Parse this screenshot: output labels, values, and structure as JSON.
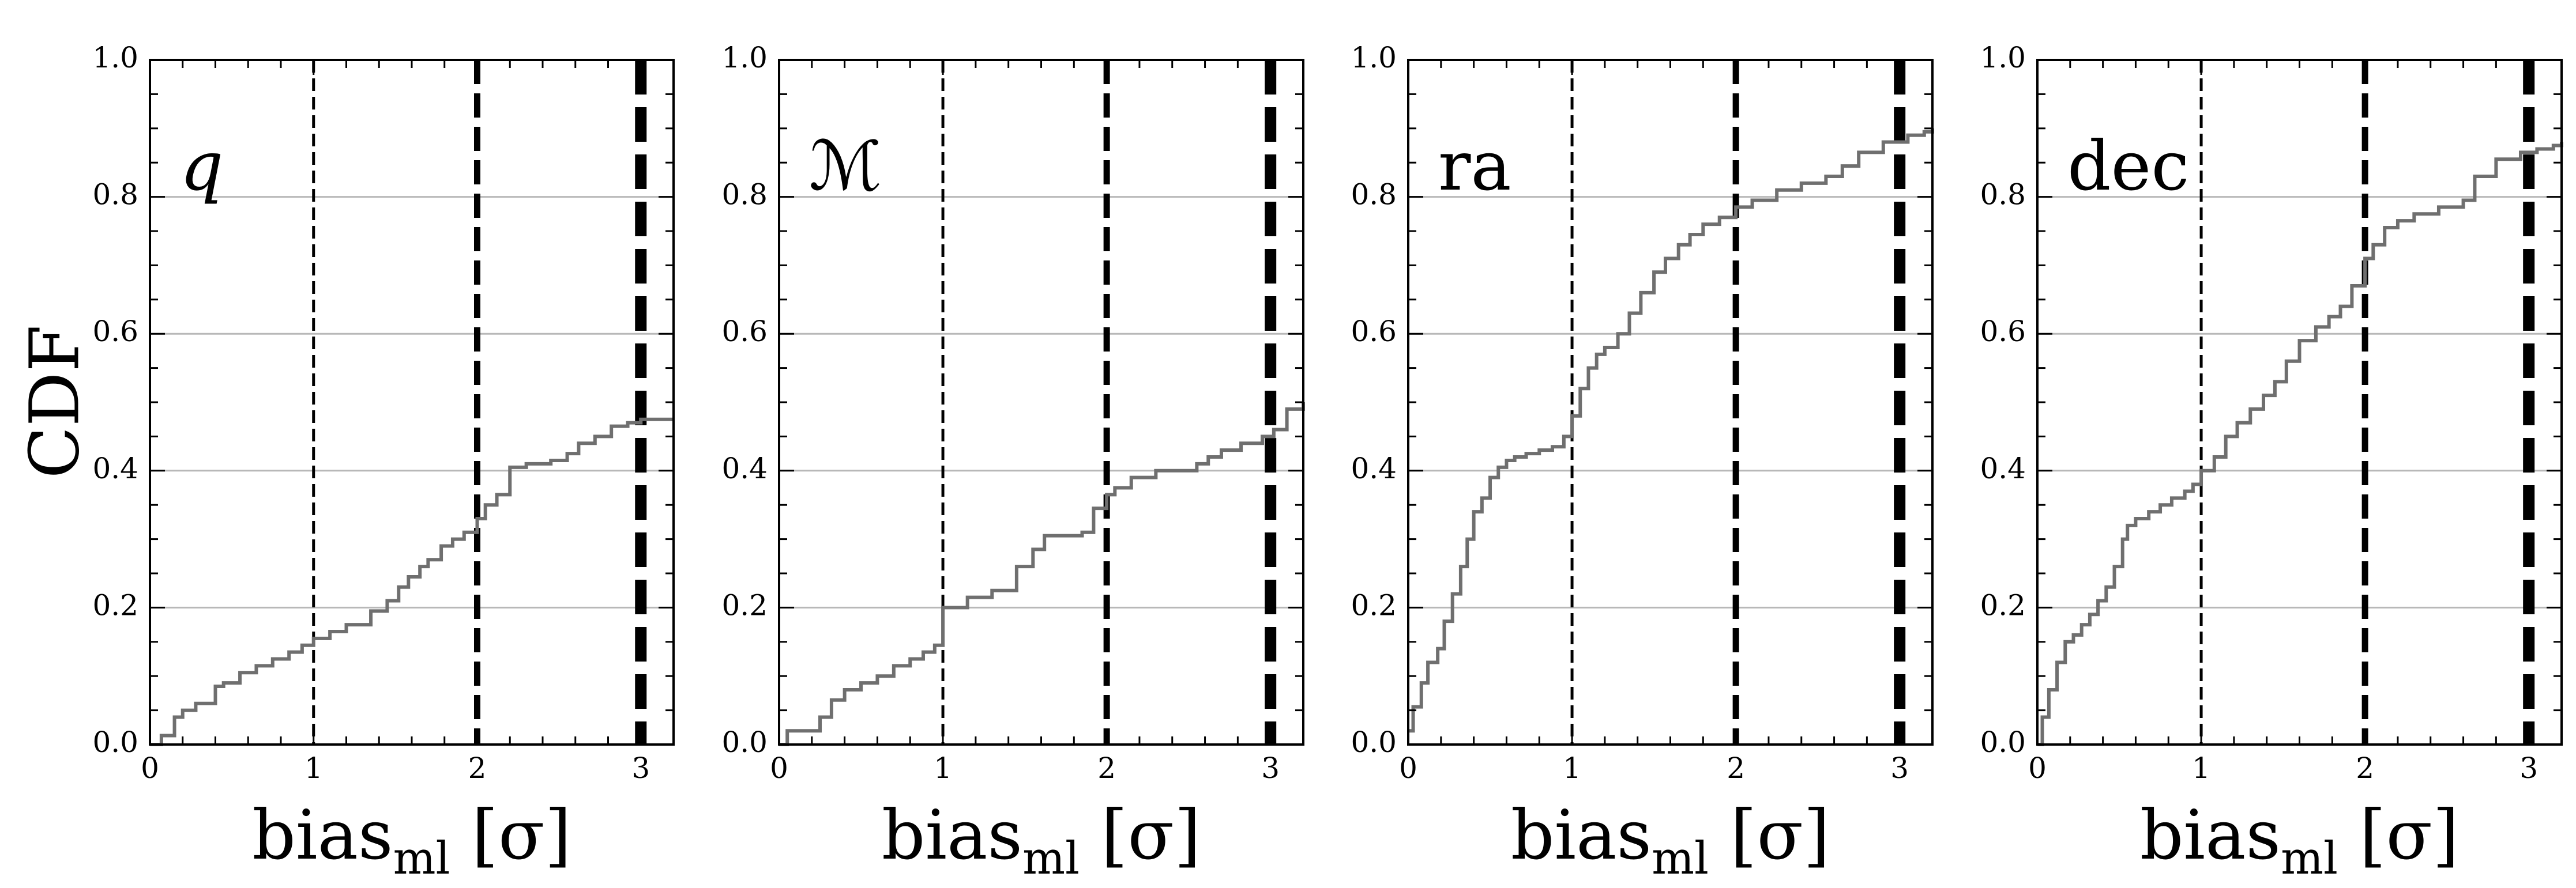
{
  "figure": {
    "ylabel": "CDF"
  },
  "chart_data": [
    {
      "type": "line",
      "step": true,
      "panel_label": "q",
      "panel_label_italic": true,
      "xlabel_main": "bias",
      "xlabel_sub": "ml",
      "xlabel_unit": "[σ]",
      "xlim": [
        0,
        3.2
      ],
      "ylim": [
        0,
        1.0
      ],
      "x_ticks": [
        "0",
        "1",
        "2",
        "3"
      ],
      "y_ticks": [
        "0.0",
        "0.2",
        "0.4",
        "0.6",
        "0.8",
        "1.0"
      ],
      "grid": "horizontal",
      "reference_lines": [
        {
          "x": 1,
          "style": "dashed",
          "weight": "thin"
        },
        {
          "x": 2,
          "style": "dashed",
          "weight": "medium"
        },
        {
          "x": 3,
          "style": "dashed",
          "weight": "thick"
        }
      ],
      "series": [
        {
          "color": "#6f6f6f",
          "x": [
            0.0,
            0.07,
            0.15,
            0.2,
            0.28,
            0.4,
            0.45,
            0.55,
            0.65,
            0.75,
            0.85,
            0.93,
            1.0,
            1.1,
            1.2,
            1.35,
            1.45,
            1.52,
            1.58,
            1.65,
            1.7,
            1.78,
            1.85,
            1.92,
            2.0,
            2.05,
            2.12,
            2.2,
            2.3,
            2.45,
            2.55,
            2.62,
            2.72,
            2.82,
            2.92,
            3.0,
            3.2
          ],
          "y": [
            0.0,
            0.013,
            0.04,
            0.05,
            0.06,
            0.085,
            0.09,
            0.105,
            0.115,
            0.125,
            0.135,
            0.145,
            0.155,
            0.165,
            0.175,
            0.195,
            0.21,
            0.23,
            0.245,
            0.26,
            0.27,
            0.29,
            0.3,
            0.31,
            0.33,
            0.35,
            0.365,
            0.405,
            0.41,
            0.415,
            0.425,
            0.44,
            0.45,
            0.465,
            0.47,
            0.475,
            0.475
          ]
        }
      ]
    },
    {
      "type": "line",
      "step": true,
      "panel_label": "ℳ",
      "panel_label_italic": false,
      "xlabel_main": "bias",
      "xlabel_sub": "ml",
      "xlabel_unit": "[σ]",
      "xlim": [
        0,
        3.2
      ],
      "ylim": [
        0,
        1.0
      ],
      "x_ticks": [
        "0",
        "1",
        "2",
        "3"
      ],
      "y_ticks": [
        "0.0",
        "0.2",
        "0.4",
        "0.6",
        "0.8",
        "1.0"
      ],
      "grid": "horizontal",
      "reference_lines": [
        {
          "x": 1,
          "style": "dashed",
          "weight": "thin"
        },
        {
          "x": 2,
          "style": "dashed",
          "weight": "medium"
        },
        {
          "x": 3,
          "style": "dashed",
          "weight": "thick"
        }
      ],
      "series": [
        {
          "color": "#6f6f6f",
          "x": [
            0.0,
            0.05,
            0.25,
            0.32,
            0.4,
            0.5,
            0.6,
            0.7,
            0.8,
            0.88,
            0.95,
            1.0,
            1.15,
            1.3,
            1.45,
            1.55,
            1.62,
            1.85,
            1.92,
            2.0,
            2.05,
            2.15,
            2.3,
            2.55,
            2.62,
            2.7,
            2.82,
            2.95,
            3.02,
            3.1,
            3.2
          ],
          "y": [
            0.0,
            0.02,
            0.04,
            0.065,
            0.08,
            0.09,
            0.1,
            0.115,
            0.125,
            0.135,
            0.145,
            0.2,
            0.215,
            0.225,
            0.26,
            0.285,
            0.305,
            0.31,
            0.345,
            0.365,
            0.375,
            0.39,
            0.4,
            0.41,
            0.42,
            0.43,
            0.44,
            0.45,
            0.46,
            0.49,
            0.5
          ]
        }
      ]
    },
    {
      "type": "line",
      "step": true,
      "panel_label": "ra",
      "panel_label_italic": false,
      "xlabel_main": "bias",
      "xlabel_sub": "ml",
      "xlabel_unit": "[σ]",
      "xlim": [
        0,
        3.2
      ],
      "ylim": [
        0,
        1.0
      ],
      "x_ticks": [
        "0",
        "1",
        "2",
        "3"
      ],
      "y_ticks": [
        "0.0",
        "0.2",
        "0.4",
        "0.6",
        "0.8",
        "1.0"
      ],
      "grid": "horizontal",
      "reference_lines": [
        {
          "x": 1,
          "style": "dashed",
          "weight": "thin"
        },
        {
          "x": 2,
          "style": "dashed",
          "weight": "medium"
        },
        {
          "x": 3,
          "style": "dashed",
          "weight": "thick"
        }
      ],
      "series": [
        {
          "color": "#6f6f6f",
          "x": [
            0.0,
            0.03,
            0.08,
            0.12,
            0.18,
            0.22,
            0.27,
            0.32,
            0.36,
            0.4,
            0.45,
            0.5,
            0.55,
            0.6,
            0.65,
            0.72,
            0.8,
            0.88,
            0.95,
            1.0,
            1.05,
            1.1,
            1.15,
            1.2,
            1.28,
            1.35,
            1.42,
            1.5,
            1.57,
            1.65,
            1.72,
            1.8,
            1.9,
            2.0,
            2.1,
            2.25,
            2.4,
            2.55,
            2.65,
            2.75,
            2.9,
            3.05,
            3.15,
            3.2
          ],
          "y": [
            0.02,
            0.055,
            0.09,
            0.12,
            0.14,
            0.18,
            0.22,
            0.26,
            0.3,
            0.34,
            0.36,
            0.39,
            0.405,
            0.415,
            0.42,
            0.425,
            0.43,
            0.435,
            0.45,
            0.48,
            0.52,
            0.55,
            0.57,
            0.58,
            0.6,
            0.63,
            0.66,
            0.69,
            0.71,
            0.73,
            0.745,
            0.76,
            0.77,
            0.785,
            0.795,
            0.81,
            0.82,
            0.83,
            0.845,
            0.865,
            0.88,
            0.89,
            0.895,
            0.9
          ]
        }
      ]
    },
    {
      "type": "line",
      "step": true,
      "panel_label": "dec",
      "panel_label_italic": false,
      "xlabel_main": "bias",
      "xlabel_sub": "ml",
      "xlabel_unit": "[σ]",
      "xlim": [
        0,
        3.2
      ],
      "ylim": [
        0,
        1.0
      ],
      "x_ticks": [
        "0",
        "1",
        "2",
        "3"
      ],
      "y_ticks": [
        "0.0",
        "0.2",
        "0.4",
        "0.6",
        "0.8",
        "1.0"
      ],
      "grid": "horizontal",
      "reference_lines": [
        {
          "x": 1,
          "style": "dashed",
          "weight": "thin"
        },
        {
          "x": 2,
          "style": "dashed",
          "weight": "medium"
        },
        {
          "x": 3,
          "style": "dashed",
          "weight": "thick"
        }
      ],
      "series": [
        {
          "color": "#6f6f6f",
          "x": [
            0.0,
            0.03,
            0.07,
            0.12,
            0.17,
            0.22,
            0.27,
            0.32,
            0.37,
            0.42,
            0.47,
            0.52,
            0.55,
            0.6,
            0.68,
            0.75,
            0.82,
            0.9,
            0.95,
            1.0,
            1.08,
            1.15,
            1.22,
            1.3,
            1.38,
            1.45,
            1.52,
            1.6,
            1.7,
            1.78,
            1.85,
            1.92,
            2.0,
            2.05,
            2.12,
            2.2,
            2.3,
            2.45,
            2.6,
            2.67,
            2.8,
            2.95,
            3.05,
            3.15,
            3.2
          ],
          "y": [
            0.0,
            0.04,
            0.08,
            0.12,
            0.15,
            0.16,
            0.175,
            0.19,
            0.21,
            0.23,
            0.26,
            0.3,
            0.32,
            0.33,
            0.34,
            0.35,
            0.36,
            0.37,
            0.38,
            0.4,
            0.42,
            0.45,
            0.47,
            0.49,
            0.51,
            0.53,
            0.56,
            0.59,
            0.61,
            0.625,
            0.64,
            0.67,
            0.71,
            0.73,
            0.755,
            0.765,
            0.775,
            0.785,
            0.795,
            0.83,
            0.855,
            0.865,
            0.87,
            0.875,
            0.88
          ]
        }
      ]
    }
  ]
}
